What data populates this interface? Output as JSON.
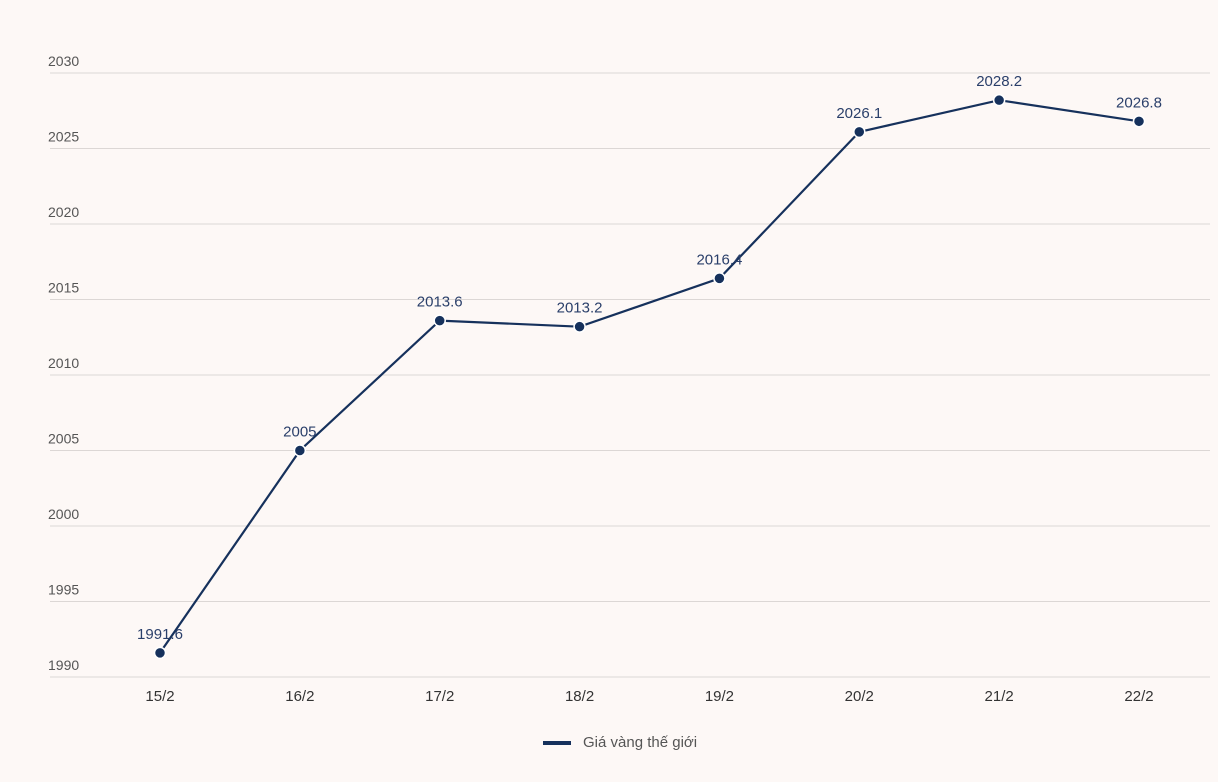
{
  "chart_data": {
    "type": "line",
    "categories": [
      "15/2",
      "16/2",
      "17/2",
      "18/2",
      "19/2",
      "20/2",
      "21/2",
      "22/2"
    ],
    "series": [
      {
        "name": "Giá vàng thế giới",
        "values": [
          1991.6,
          2005,
          2013.6,
          2013.2,
          2016.4,
          2026.1,
          2028.2,
          2026.8
        ],
        "labels": [
          "1991.6",
          "2005",
          "2013.6",
          "2013.2",
          "2016.4",
          "2026.1",
          "2028.2",
          "2026.8"
        ],
        "color": "#16315c"
      }
    ],
    "yticks": [
      "1990",
      "1995",
      "2000",
      "2005",
      "2010",
      "2015",
      "2020",
      "2025",
      "2030"
    ],
    "ylim": [
      1990,
      2030
    ],
    "grid": true,
    "legend_position": "bottom-center"
  },
  "legend": {
    "label": "Giá vàng thế giới"
  }
}
